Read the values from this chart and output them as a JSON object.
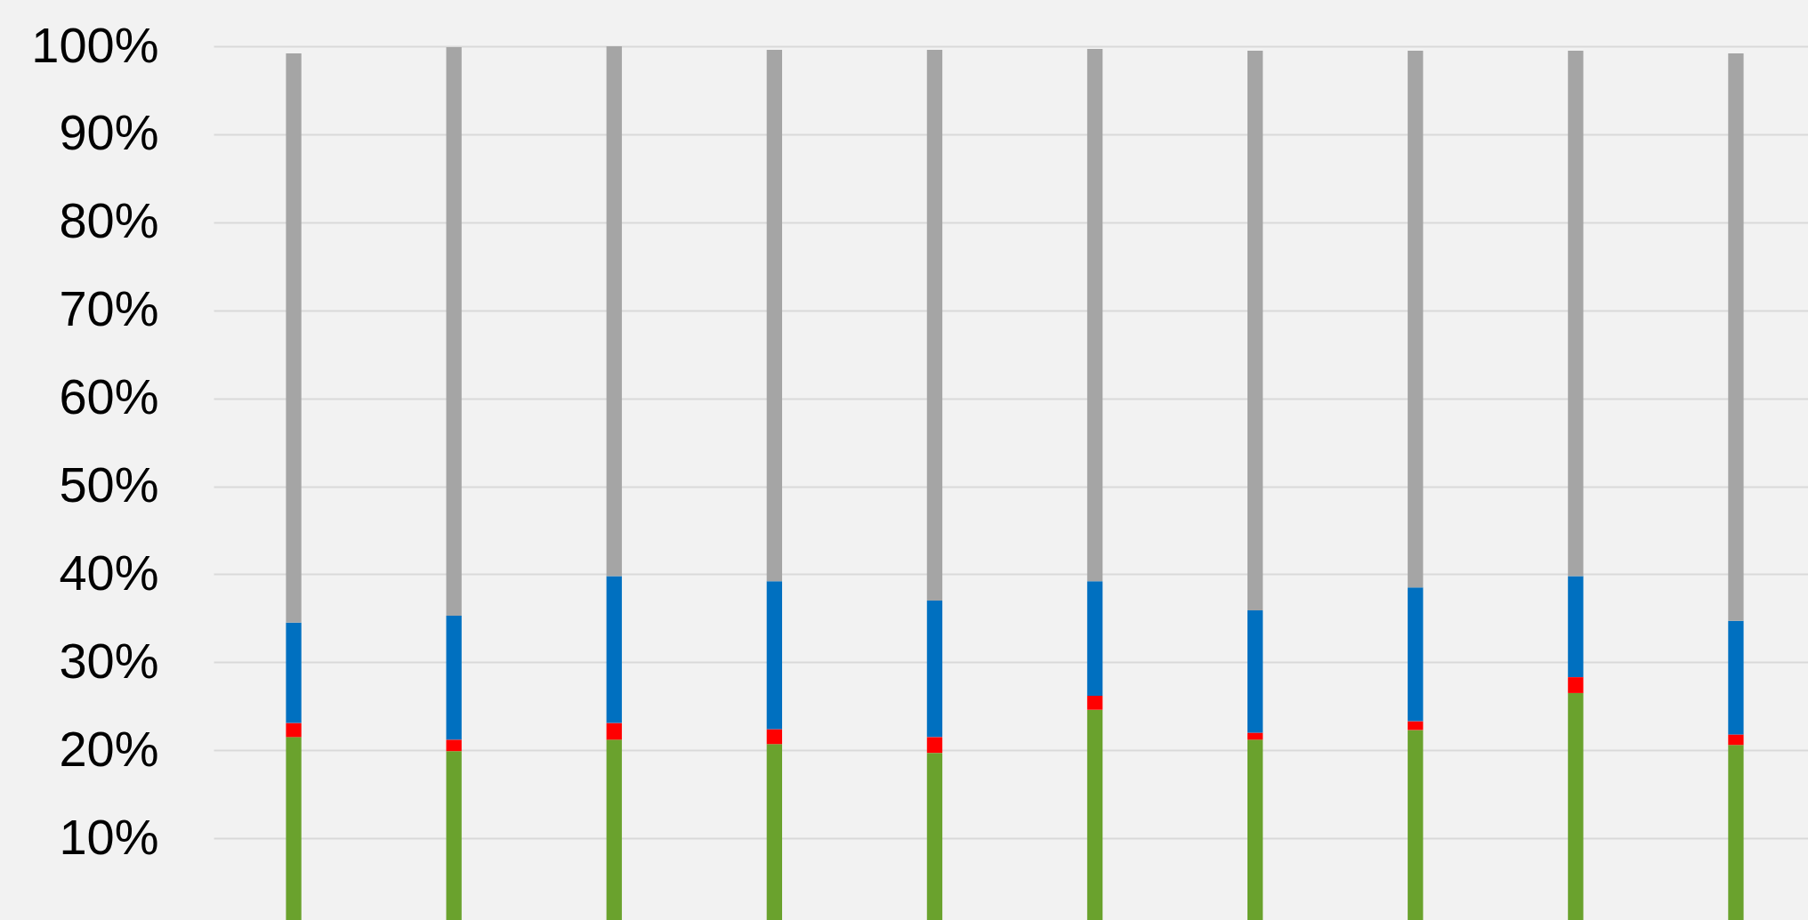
{
  "chart_data": {
    "type": "bar",
    "stacked": true,
    "categories": [
      null,
      null,
      null,
      null,
      null,
      null,
      null,
      null,
      null,
      null
    ],
    "series": [
      {
        "color": "#6aa22d",
        "values": [
          21.5,
          19.9,
          21.2,
          20.7,
          19.7,
          24.6,
          21.2,
          22.3,
          26.5,
          20.6
        ]
      },
      {
        "color": "#ff0000",
        "values": [
          1.6,
          1.3,
          1.9,
          1.7,
          1.8,
          1.6,
          0.8,
          1.0,
          1.8,
          1.2
        ]
      },
      {
        "color": "#0070c0",
        "values": [
          11.4,
          14.1,
          16.7,
          16.8,
          15.5,
          13.0,
          13.9,
          15.2,
          11.5,
          12.9
        ]
      },
      {
        "color": "#a5a5a5",
        "values": [
          64.7,
          64.6,
          60.2,
          60.4,
          62.6,
          60.5,
          63.6,
          61.0,
          59.7,
          64.5
        ]
      }
    ],
    "ylim": [
      0,
      100
    ],
    "yticks": [
      {
        "value": 10,
        "label": "10%"
      },
      {
        "value": 20,
        "label": "20%"
      },
      {
        "value": 30,
        "label": "30%"
      },
      {
        "value": 40,
        "label": "40%"
      },
      {
        "value": 50,
        "label": "50%"
      },
      {
        "value": 60,
        "label": "60%"
      },
      {
        "value": 70,
        "label": "70%"
      },
      {
        "value": 80,
        "label": "80%"
      },
      {
        "value": 90,
        "label": "90%"
      },
      {
        "value": 100,
        "label": "100%"
      }
    ],
    "grid": "y",
    "legend": false,
    "tick_labels": "y"
  }
}
